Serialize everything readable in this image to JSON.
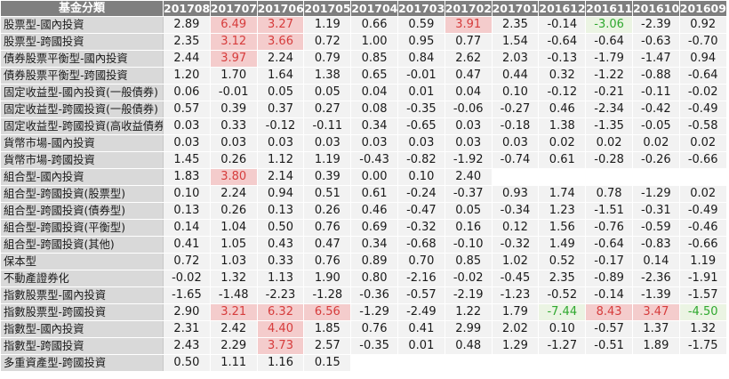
{
  "table": {
    "header_category": "基金分類",
    "periods": [
      "201708",
      "201707",
      "201706",
      "201705",
      "201704",
      "201703",
      "201702",
      "201701",
      "201612",
      "201611",
      "201610",
      "201609"
    ],
    "rows": [
      {
        "category": "股票型-國內投資",
        "values": [
          "2.89",
          "6.49",
          "3.27",
          "1.19",
          "0.66",
          "0.59",
          "3.91",
          "2.35",
          "-0.14",
          "-3.06",
          "-2.39",
          "0.92"
        ],
        "highlight": [
          "",
          "red",
          "red",
          "",
          "",
          "",
          "red",
          "",
          "",
          "green",
          "",
          ""
        ]
      },
      {
        "category": "股票型-跨國投資",
        "values": [
          "2.35",
          "3.12",
          "3.66",
          "0.72",
          "1.00",
          "0.95",
          "0.77",
          "1.54",
          "-0.64",
          "-0.64",
          "-0.63",
          "-0.70"
        ],
        "highlight": [
          "",
          "red",
          "red",
          "",
          "",
          "",
          "",
          "",
          "",
          "",
          "",
          ""
        ]
      },
      {
        "category": "債券股票平衡型-國內投資",
        "values": [
          "2.44",
          "3.97",
          "2.24",
          "0.79",
          "0.85",
          "0.84",
          "2.62",
          "2.03",
          "-0.13",
          "-1.79",
          "-1.47",
          "0.94"
        ],
        "highlight": [
          "",
          "red",
          "",
          "",
          "",
          "",
          "",
          "",
          "",
          "",
          "",
          ""
        ]
      },
      {
        "category": "債券股票平衡型-跨國投資",
        "values": [
          "1.20",
          "1.70",
          "1.64",
          "1.38",
          "0.65",
          "-0.01",
          "0.47",
          "0.44",
          "0.32",
          "-1.22",
          "-0.88",
          "-0.64"
        ],
        "highlight": [
          "",
          "",
          "",
          "",
          "",
          "",
          "",
          "",
          "",
          "",
          "",
          ""
        ]
      },
      {
        "category": "固定收益型-國內投資(一般債券)",
        "values": [
          "0.06",
          "-0.01",
          "0.05",
          "0.05",
          "0.04",
          "0.01",
          "0.04",
          "0.10",
          "-0.12",
          "-0.21",
          "-0.11",
          "-0.02"
        ],
        "highlight": [
          "",
          "",
          "",
          "",
          "",
          "",
          "",
          "",
          "",
          "",
          "",
          ""
        ]
      },
      {
        "category": "固定收益型-跨國投資(一般債券)",
        "values": [
          "0.57",
          "0.39",
          "0.37",
          "0.27",
          "0.08",
          "-0.35",
          "-0.06",
          "-0.27",
          "0.46",
          "-2.34",
          "-0.42",
          "-0.49"
        ],
        "highlight": [
          "",
          "",
          "",
          "",
          "",
          "",
          "",
          "",
          "",
          "",
          "",
          ""
        ]
      },
      {
        "category": "固定收益型-跨國投資(高收益債券)",
        "values": [
          "0.03",
          "0.33",
          "-0.12",
          "-0.11",
          "0.34",
          "-0.65",
          "0.03",
          "-0.18",
          "1.38",
          "-1.35",
          "-0.05",
          "-0.58"
        ],
        "highlight": [
          "",
          "",
          "",
          "",
          "",
          "",
          "",
          "",
          "",
          "",
          "",
          ""
        ]
      },
      {
        "category": "貨幣市場-國內投資",
        "values": [
          "0.03",
          "0.03",
          "0.03",
          "0.03",
          "0.03",
          "0.03",
          "0.03",
          "0.03",
          "0.02",
          "0.02",
          "0.02",
          "0.02"
        ],
        "highlight": [
          "",
          "",
          "",
          "",
          "",
          "",
          "",
          "",
          "",
          "",
          "",
          ""
        ]
      },
      {
        "category": "貨幣市場-跨國投資",
        "values": [
          "1.45",
          "0.26",
          "1.12",
          "1.19",
          "-0.43",
          "-0.82",
          "-1.92",
          "-0.74",
          "0.61",
          "-0.28",
          "-0.26",
          "-0.66"
        ],
        "highlight": [
          "",
          "",
          "",
          "",
          "",
          "",
          "",
          "",
          "",
          "",
          "",
          ""
        ]
      },
      {
        "category": "組合型-國內投資",
        "values": [
          "1.83",
          "3.80",
          "2.14",
          "0.39",
          "0.00",
          "0.10",
          "2.40",
          "",
          "",
          "",
          "",
          ""
        ],
        "highlight": [
          "",
          "red",
          "",
          "",
          "",
          "",
          "",
          "",
          "",
          "",
          "",
          ""
        ]
      },
      {
        "category": "組合型-跨國投資(股票型)",
        "values": [
          "0.10",
          "2.24",
          "0.94",
          "0.51",
          "0.61",
          "-0.24",
          "-0.37",
          "0.93",
          "1.74",
          "0.78",
          "-1.29",
          "0.02"
        ],
        "highlight": [
          "",
          "",
          "",
          "",
          "",
          "",
          "",
          "",
          "",
          "",
          "",
          ""
        ]
      },
      {
        "category": "組合型-跨國投資(債券型)",
        "values": [
          "0.13",
          "0.26",
          "0.13",
          "0.26",
          "0.46",
          "-0.47",
          "0.05",
          "-0.34",
          "1.23",
          "-1.51",
          "-0.31",
          "-0.49"
        ],
        "highlight": [
          "",
          "",
          "",
          "",
          "",
          "",
          "",
          "",
          "",
          "",
          "",
          ""
        ]
      },
      {
        "category": "組合型-跨國投資(平衡型)",
        "values": [
          "0.14",
          "1.04",
          "0.50",
          "0.76",
          "0.69",
          "-0.32",
          "0.16",
          "0.12",
          "1.56",
          "-0.76",
          "-0.59",
          "-0.46"
        ],
        "highlight": [
          "",
          "",
          "",
          "",
          "",
          "",
          "",
          "",
          "",
          "",
          "",
          ""
        ]
      },
      {
        "category": "組合型-跨國投資(其他)",
        "values": [
          "0.41",
          "1.05",
          "0.43",
          "0.47",
          "0.34",
          "-0.68",
          "-0.10",
          "-0.32",
          "1.49",
          "-0.64",
          "-0.83",
          "-0.66"
        ],
        "highlight": [
          "",
          "",
          "",
          "",
          "",
          "",
          "",
          "",
          "",
          "",
          "",
          ""
        ]
      },
      {
        "category": "保本型",
        "values": [
          "0.72",
          "1.03",
          "0.33",
          "0.76",
          "0.89",
          "0.70",
          "0.85",
          "1.02",
          "0.52",
          "-0.17",
          "0.14",
          "1.19"
        ],
        "highlight": [
          "",
          "",
          "",
          "",
          "",
          "",
          "",
          "",
          "",
          "",
          "",
          ""
        ]
      },
      {
        "category": "不動產證券化",
        "values": [
          "-0.02",
          "1.32",
          "1.13",
          "1.90",
          "0.80",
          "-2.16",
          "-0.02",
          "-0.45",
          "2.35",
          "-0.89",
          "-2.36",
          "-1.91"
        ],
        "highlight": [
          "",
          "",
          "",
          "",
          "",
          "",
          "",
          "",
          "",
          "",
          "",
          ""
        ]
      },
      {
        "category": "指數股票型-國內投資",
        "values": [
          "-1.65",
          "-1.48",
          "-2.23",
          "-1.28",
          "-0.36",
          "-0.57",
          "-2.19",
          "-1.23",
          "-0.52",
          "-0.14",
          "-1.39",
          "-1.57"
        ],
        "highlight": [
          "",
          "",
          "",
          "",
          "",
          "",
          "",
          "",
          "",
          "",
          "",
          ""
        ]
      },
      {
        "category": "指數股票型-跨國投資",
        "values": [
          "2.90",
          "3.21",
          "6.32",
          "6.56",
          "-1.29",
          "-2.49",
          "1.22",
          "1.79",
          "-7.44",
          "8.43",
          "3.47",
          "-4.50"
        ],
        "highlight": [
          "",
          "red",
          "red",
          "red",
          "",
          "",
          "",
          "",
          "green",
          "red",
          "red",
          "green"
        ]
      },
      {
        "category": "指數型-國內投資",
        "values": [
          "2.31",
          "2.42",
          "4.40",
          "1.85",
          "0.76",
          "0.41",
          "2.99",
          "2.02",
          "0.10",
          "-0.57",
          "1.37",
          "1.32"
        ],
        "highlight": [
          "",
          "",
          "red",
          "",
          "",
          "",
          "",
          "",
          "",
          "",
          "",
          ""
        ]
      },
      {
        "category": "指數型-跨國投資",
        "values": [
          "2.43",
          "2.29",
          "3.73",
          "2.57",
          "-0.35",
          "0.01",
          "0.48",
          "1.29",
          "-1.27",
          "-0.51",
          "1.89",
          "-1.75"
        ],
        "highlight": [
          "",
          "",
          "red",
          "",
          "",
          "",
          "",
          "",
          "",
          "",
          "",
          ""
        ]
      },
      {
        "category": "多重資產型-跨國投資",
        "values": [
          "0.50",
          "1.11",
          "1.16",
          "0.15",
          "",
          "",
          "",
          "",
          "",
          "",
          "",
          ""
        ],
        "highlight": [
          "",
          "",
          "",
          "",
          "",
          "",
          "",
          "",
          "",
          "",
          "",
          ""
        ]
      }
    ]
  },
  "colors": {
    "header_bg": "#7f7f7f",
    "category_bg": "#d9d9d9",
    "cell_bg": "#f2f2f2",
    "highlight_red_bg": "#f4cccc",
    "highlight_red_text": "#d63c3c",
    "highlight_green_bg": "#ebf4e3",
    "highlight_green_text": "#2fa82f"
  }
}
